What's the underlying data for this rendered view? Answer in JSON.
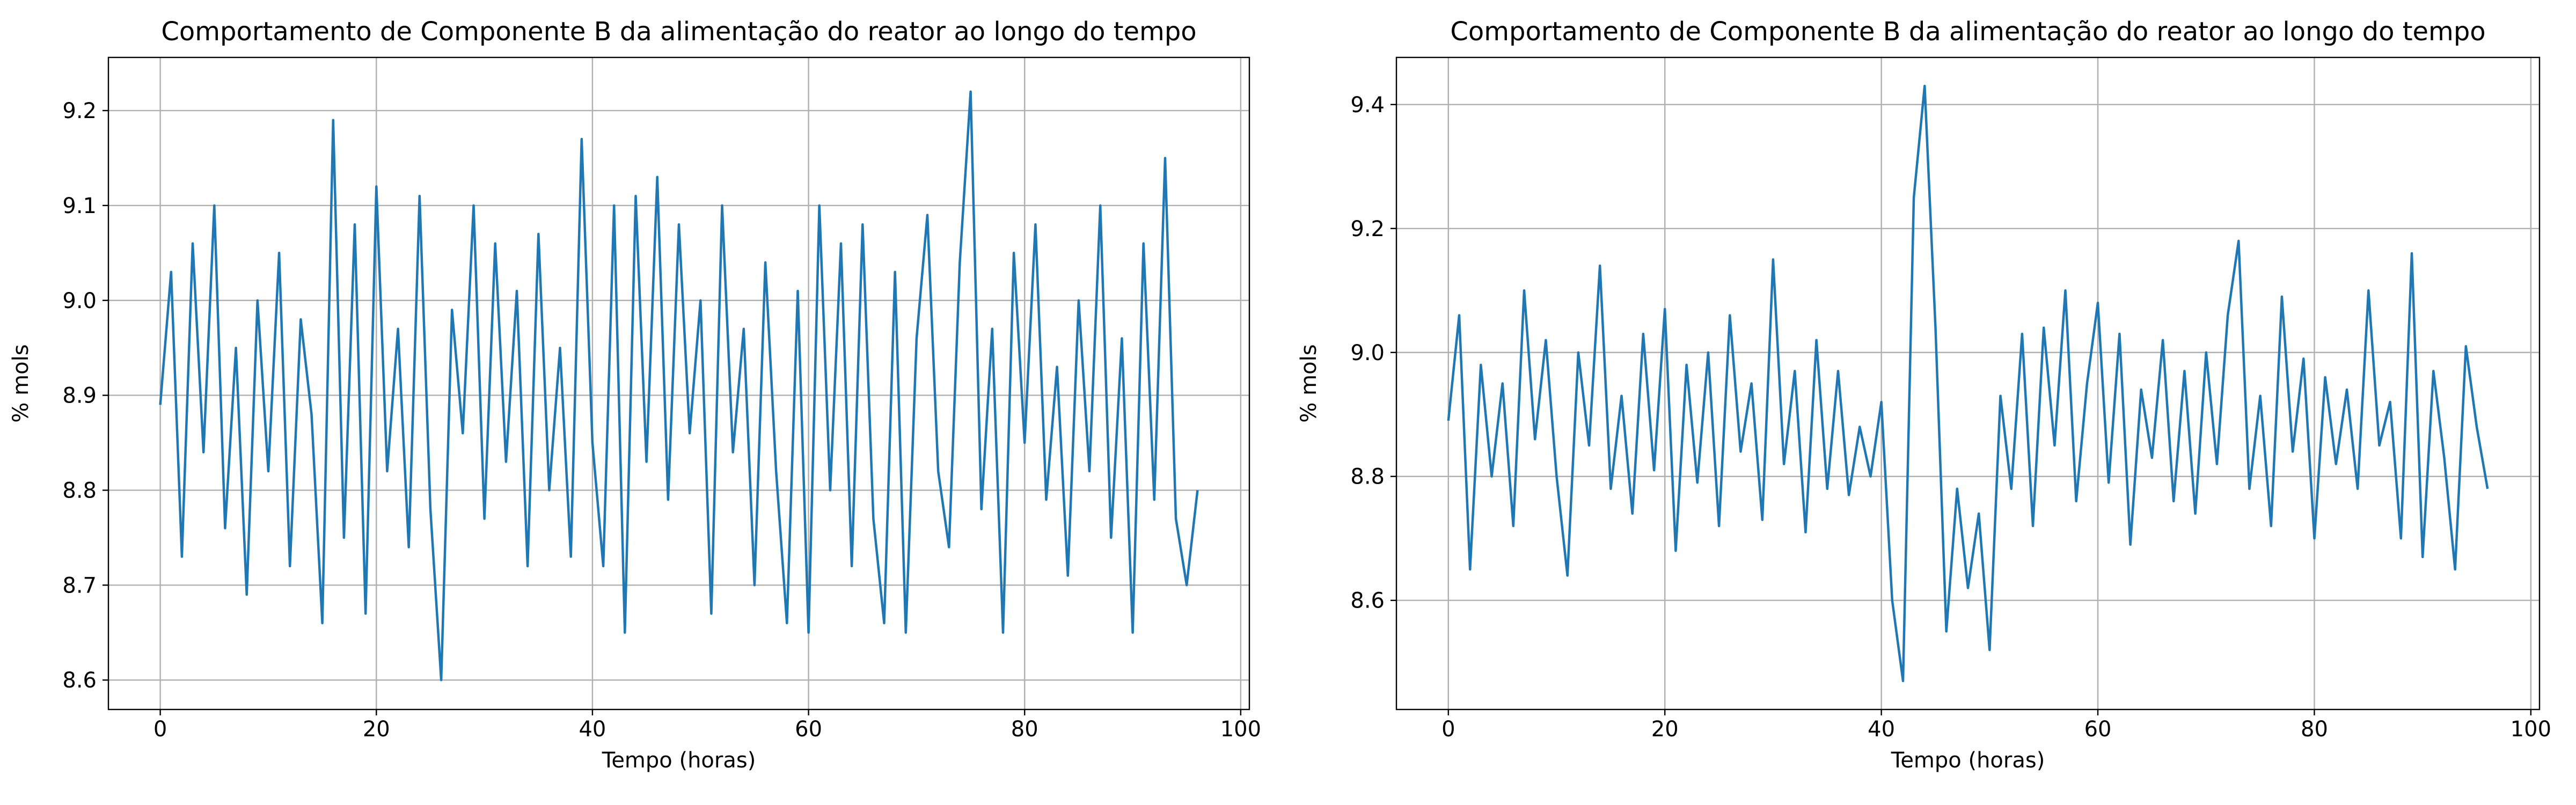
{
  "chart_data": [
    {
      "type": "line",
      "title": "Comportamento de Componente B da alimentação do reator ao longo do tempo",
      "xlabel": "Tempo (horas)",
      "ylabel": "% mols",
      "color": "#1f77b4",
      "grid": true,
      "x": [
        0,
        1,
        2,
        3,
        4,
        5,
        6,
        7,
        8,
        9,
        10,
        11,
        12,
        13,
        14,
        15,
        16,
        17,
        18,
        19,
        20,
        21,
        22,
        23,
        24,
        25,
        26,
        27,
        28,
        29,
        30,
        31,
        32,
        33,
        34,
        35,
        36,
        37,
        38,
        39,
        40,
        41,
        42,
        43,
        44,
        45,
        46,
        47,
        48,
        49,
        50,
        51,
        52,
        53,
        54,
        55,
        56,
        57,
        58,
        59,
        60,
        61,
        62,
        63,
        64,
        65,
        66,
        67,
        68,
        69,
        70,
        71,
        72,
        73,
        74,
        75,
        76,
        77,
        78,
        79,
        80,
        81,
        82,
        83,
        84,
        85,
        86,
        87,
        88,
        89,
        90,
        91,
        92,
        93,
        94,
        95,
        96
      ],
      "values": [
        8.89,
        9.03,
        8.73,
        9.06,
        8.84,
        9.1,
        8.76,
        8.95,
        8.69,
        9.0,
        8.82,
        9.05,
        8.72,
        8.98,
        8.88,
        8.66,
        9.19,
        8.75,
        9.08,
        8.67,
        9.12,
        8.82,
        8.97,
        8.74,
        9.11,
        8.78,
        8.6,
        8.99,
        8.86,
        9.1,
        8.77,
        9.06,
        8.83,
        9.01,
        8.72,
        9.07,
        8.8,
        8.95,
        8.73,
        9.17,
        8.85,
        8.72,
        9.1,
        8.65,
        9.11,
        8.83,
        9.13,
        8.79,
        9.08,
        8.86,
        9.0,
        8.67,
        9.1,
        8.84,
        8.97,
        8.7,
        9.04,
        8.82,
        8.66,
        9.01,
        8.65,
        9.1,
        8.8,
        9.06,
        8.72,
        9.08,
        8.77,
        8.66,
        9.03,
        8.65,
        8.96,
        9.09,
        8.82,
        8.74,
        9.04,
        9.22,
        8.78,
        8.97,
        8.65,
        9.05,
        8.85,
        9.08,
        8.79,
        8.93,
        8.71,
        9.0,
        8.82,
        9.1,
        8.75,
        8.96,
        8.65,
        9.06,
        8.79,
        9.15,
        8.77,
        8.7,
        8.8
      ],
      "xlim": [
        -4.8,
        100.8
      ],
      "xticks": [
        0,
        20,
        40,
        60,
        80,
        100
      ],
      "ylim": [
        8.569,
        9.256
      ],
      "yticks": [
        8.6,
        8.7,
        8.8,
        8.9,
        {
          "value": 9,
          "label": "9.0"
        },
        9.1,
        9.2
      ]
    },
    {
      "type": "line",
      "title": "Comportamento de Componente B da alimentação do reator ao longo do tempo",
      "xlabel": "Tempo (horas)",
      "ylabel": "% mols",
      "color": "#1f77b4",
      "grid": true,
      "x": [
        0,
        1,
        2,
        3,
        4,
        5,
        6,
        7,
        8,
        9,
        10,
        11,
        12,
        13,
        14,
        15,
        16,
        17,
        18,
        19,
        20,
        21,
        22,
        23,
        24,
        25,
        26,
        27,
        28,
        29,
        30,
        31,
        32,
        33,
        34,
        35,
        36,
        37,
        38,
        39,
        40,
        41,
        42,
        43,
        44,
        45,
        46,
        47,
        48,
        49,
        50,
        51,
        52,
        53,
        54,
        55,
        56,
        57,
        58,
        59,
        60,
        61,
        62,
        63,
        64,
        65,
        66,
        67,
        68,
        69,
        70,
        71,
        72,
        73,
        74,
        75,
        76,
        77,
        78,
        79,
        80,
        81,
        82,
        83,
        84,
        85,
        86,
        87,
        88,
        89,
        90,
        91,
        92,
        93,
        94,
        95,
        96
      ],
      "values": [
        8.89,
        9.06,
        8.65,
        8.98,
        8.8,
        8.95,
        8.72,
        9.1,
        8.86,
        9.02,
        8.8,
        8.64,
        9.0,
        8.85,
        9.14,
        8.78,
        8.93,
        8.74,
        9.03,
        8.81,
        9.07,
        8.68,
        8.98,
        8.79,
        9.0,
        8.72,
        9.06,
        8.84,
        8.95,
        8.73,
        9.15,
        8.82,
        8.97,
        8.71,
        9.02,
        8.78,
        8.97,
        8.77,
        8.88,
        8.8,
        8.92,
        8.6,
        8.47,
        9.25,
        9.43,
        9.04,
        8.55,
        8.78,
        8.62,
        8.74,
        8.52,
        8.93,
        8.78,
        9.03,
        8.72,
        9.04,
        8.85,
        9.1,
        8.76,
        8.95,
        9.08,
        8.79,
        9.03,
        8.69,
        8.94,
        8.83,
        9.02,
        8.76,
        8.97,
        8.74,
        9.0,
        8.82,
        9.06,
        9.18,
        8.78,
        8.93,
        8.72,
        9.09,
        8.84,
        8.99,
        8.7,
        8.96,
        8.82,
        8.94,
        8.78,
        9.1,
        8.85,
        8.92,
        8.7,
        9.16,
        8.67,
        8.97,
        8.83,
        8.65,
        9.01,
        8.88,
        8.78
      ],
      "xlim": [
        -4.8,
        100.8
      ],
      "xticks": [
        0,
        20,
        40,
        60,
        80,
        100
      ],
      "ylim": [
        8.424,
        9.476
      ],
      "yticks": [
        8.6,
        8.8,
        {
          "value": 9,
          "label": "9.0"
        },
        9.2,
        9.4
      ]
    }
  ]
}
